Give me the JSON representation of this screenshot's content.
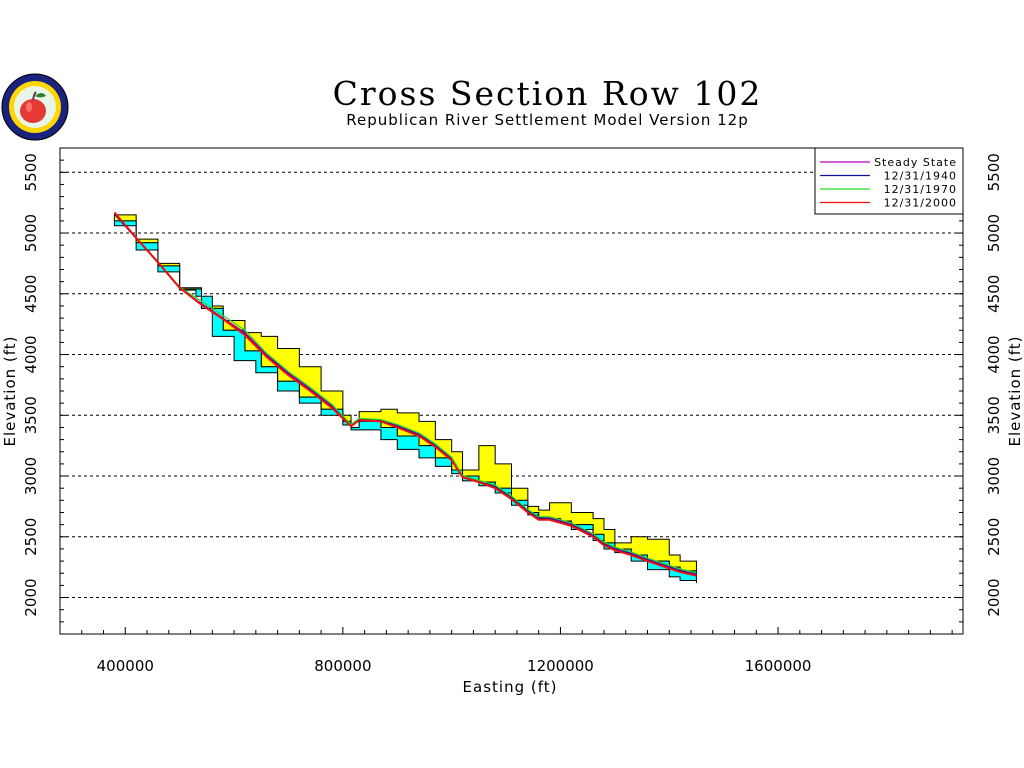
{
  "chart_data": {
    "type": "area",
    "title": "Cross Section Row 102",
    "subtitle": "Republican River Settlement Model Version 12p",
    "xlabel": "Easting (ft)",
    "ylabel": "Elevation (ft)",
    "xlim": [
      280000,
      1940000
    ],
    "ylim": [
      1700,
      5700
    ],
    "xticks": [
      "400000",
      "800000",
      "1200000",
      "1600000"
    ],
    "yticks": [
      "2000",
      "2500",
      "3000",
      "3500",
      "4000",
      "4500",
      "5000",
      "5500"
    ],
    "grid": "horizontal dashed",
    "legend_position": "top-right",
    "colors": {
      "upper_layer_fill": "#ffff00",
      "lower_layer_fill": "#00ffff",
      "steady_state": "#b000c0",
      "y1940": "#1010a0",
      "y1970": "#20e020",
      "y2000": "#ee1010"
    },
    "land_surface": {
      "x": [
        380000,
        420000,
        460000,
        500000,
        540000,
        580000,
        620000,
        650000,
        680000,
        720000,
        760000,
        800000,
        815000,
        830000,
        870000,
        900000,
        940000,
        970000,
        1000000,
        1020000,
        1050000,
        1080000,
        1110000,
        1140000,
        1160000,
        1180000,
        1200000,
        1220000,
        1260000,
        1280000,
        1300000,
        1330000,
        1360000,
        1400000,
        1420000,
        1450000
      ],
      "y": [
        5150,
        4950,
        4750,
        4550,
        4400,
        4280,
        4180,
        4150,
        4050,
        3900,
        3700,
        3500,
        3400,
        3530,
        3550,
        3520,
        3450,
        3300,
        3200,
        3050,
        3250,
        3100,
        2900,
        2750,
        2720,
        2780,
        2780,
        2700,
        2650,
        2560,
        2450,
        2500,
        2480,
        2350,
        2300,
        2230
      ]
    },
    "layer_boundary": {
      "x": [
        380000,
        420000,
        460000,
        500000,
        540000,
        580000,
        620000,
        650000,
        680000,
        720000,
        760000,
        800000,
        815000,
        830000,
        870000,
        900000,
        940000,
        970000,
        1000000,
        1020000,
        1050000,
        1080000,
        1110000,
        1140000,
        1160000,
        1180000,
        1200000,
        1220000,
        1260000,
        1280000,
        1300000,
        1330000,
        1360000,
        1400000,
        1420000,
        1450000
      ],
      "y": [
        5100,
        4920,
        4730,
        4540,
        4380,
        4200,
        4030,
        3900,
        3780,
        3650,
        3550,
        3450,
        3400,
        3450,
        3400,
        3330,
        3250,
        3150,
        3050,
        3000,
        2950,
        2900,
        2800,
        2700,
        2650,
        2650,
        2630,
        2600,
        2520,
        2450,
        2400,
        2350,
        2300,
        2250,
        2220,
        2190
      ]
    },
    "bottom": {
      "x": [
        380000,
        420000,
        460000,
        500000,
        530000,
        560000,
        600000,
        640000,
        680000,
        720000,
        760000,
        800000,
        815000,
        830000,
        870000,
        900000,
        940000,
        970000,
        1000000,
        1020000,
        1050000,
        1080000,
        1110000,
        1140000,
        1160000,
        1180000,
        1200000,
        1220000,
        1260000,
        1280000,
        1300000,
        1330000,
        1360000,
        1400000,
        1420000,
        1450000
      ],
      "y": [
        5060,
        4860,
        4680,
        4530,
        4480,
        4150,
        3950,
        3850,
        3700,
        3600,
        3500,
        3420,
        3380,
        3380,
        3300,
        3220,
        3150,
        3080,
        3020,
        2960,
        2920,
        2860,
        2760,
        2680,
        2640,
        2640,
        2620,
        2560,
        2470,
        2400,
        2370,
        2300,
        2230,
        2170,
        2140,
        2120
      ]
    },
    "series": [
      {
        "name": "Steady State",
        "x": [
          380000,
          420000,
          460000,
          500000,
          540000,
          580000,
          620000,
          660000,
          700000,
          740000,
          780000,
          815000,
          830000,
          870000,
          900000,
          940000,
          970000,
          1000000,
          1020000,
          1050000,
          1080000,
          1110000,
          1140000,
          1160000,
          1180000,
          1220000,
          1260000,
          1280000,
          1300000,
          1330000,
          1360000,
          1400000,
          1420000,
          1450000
        ],
        "y": [
          5160,
          4960,
          4760,
          4550,
          4420,
          4300,
          4180,
          4000,
          3850,
          3720,
          3580,
          3420,
          3470,
          3460,
          3420,
          3350,
          3260,
          3150,
          3000,
          2960,
          2920,
          2830,
          2720,
          2660,
          2660,
          2610,
          2520,
          2450,
          2410,
          2370,
          2320,
          2260,
          2230,
          2200
        ]
      },
      {
        "name": "12/31/1940",
        "x": [
          380000,
          420000,
          460000,
          500000,
          540000,
          580000,
          620000,
          660000,
          700000,
          740000,
          780000,
          815000,
          830000,
          870000,
          900000,
          940000,
          970000,
          1000000,
          1020000,
          1050000,
          1080000,
          1110000,
          1140000,
          1160000,
          1180000,
          1220000,
          1260000,
          1280000,
          1300000,
          1330000,
          1360000,
          1400000,
          1420000,
          1450000
        ],
        "y": [
          5155,
          4955,
          4755,
          4545,
          4410,
          4290,
          4170,
          3990,
          3840,
          3710,
          3570,
          3415,
          3465,
          3455,
          3410,
          3340,
          3250,
          3140,
          2995,
          2955,
          2915,
          2825,
          2715,
          2655,
          2650,
          2600,
          2510,
          2440,
          2400,
          2360,
          2310,
          2250,
          2220,
          2190
        ]
      },
      {
        "name": "12/31/1970",
        "x": [
          380000,
          420000,
          460000,
          500000,
          540000,
          580000,
          620000,
          660000,
          700000,
          740000,
          780000,
          815000,
          830000,
          870000,
          900000,
          940000,
          970000,
          1000000,
          1020000,
          1050000,
          1080000,
          1110000,
          1140000,
          1160000,
          1180000,
          1220000,
          1260000,
          1280000,
          1300000,
          1330000,
          1360000,
          1400000,
          1420000,
          1450000
        ],
        "y": [
          5165,
          4965,
          4765,
          4555,
          4440,
          4320,
          4200,
          4010,
          3860,
          3730,
          3590,
          3425,
          3475,
          3465,
          3425,
          3355,
          3265,
          3155,
          3005,
          2965,
          2925,
          2835,
          2725,
          2665,
          2665,
          2615,
          2525,
          2455,
          2415,
          2375,
          2325,
          2265,
          2235,
          2205
        ]
      },
      {
        "name": "12/31/2000",
        "x": [
          380000,
          420000,
          460000,
          500000,
          540000,
          580000,
          620000,
          660000,
          700000,
          740000,
          780000,
          815000,
          830000,
          870000,
          900000,
          940000,
          970000,
          1000000,
          1020000,
          1050000,
          1080000,
          1110000,
          1140000,
          1160000,
          1180000,
          1220000,
          1260000,
          1280000,
          1300000,
          1330000,
          1360000,
          1400000,
          1420000,
          1450000
        ],
        "y": [
          5170,
          4960,
          4760,
          4550,
          4410,
          4290,
          4160,
          3980,
          3830,
          3700,
          3560,
          3410,
          3460,
          3450,
          3400,
          3330,
          3240,
          3130,
          2990,
          2950,
          2900,
          2810,
          2700,
          2640,
          2640,
          2590,
          2500,
          2430,
          2390,
          2350,
          2300,
          2240,
          2210,
          2180
        ]
      }
    ]
  }
}
